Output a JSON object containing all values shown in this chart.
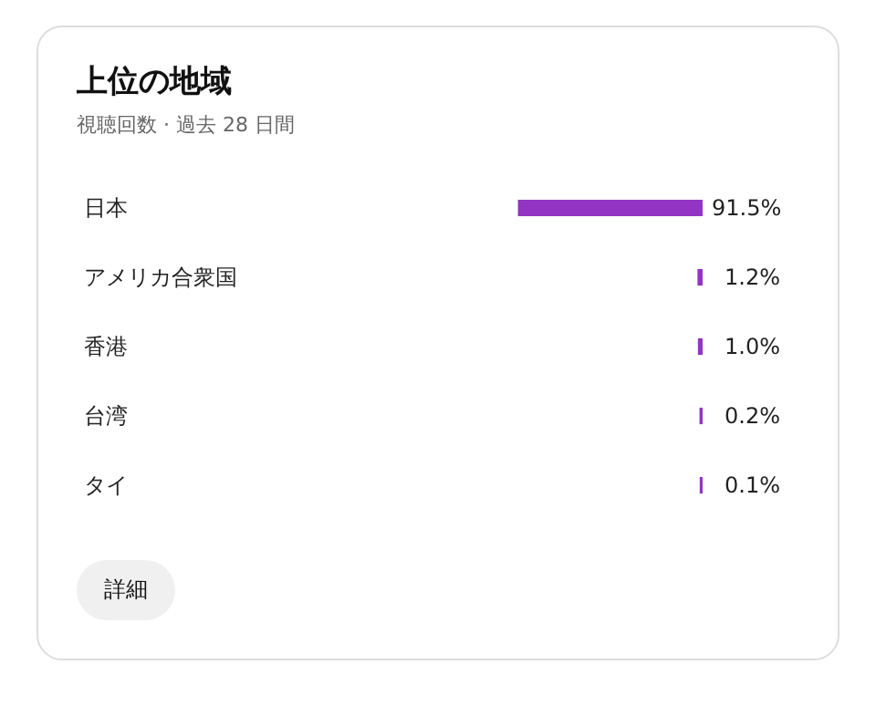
{
  "chart_data": {
    "type": "bar",
    "orientation": "horizontal",
    "title": "上位の地域",
    "subtitle": "視聴回数 · 過去 28 日間",
    "categories": [
      "日本",
      "アメリカ合衆国",
      "香港",
      "台湾",
      "タイ"
    ],
    "values": [
      91.5,
      1.2,
      1.0,
      0.2,
      0.1
    ],
    "value_labels": [
      "91.5%",
      "1.2%",
      "1.0%",
      "0.2%",
      "0.1%"
    ],
    "color": "#9334c4",
    "annotations": [
      "詳細"
    ]
  }
}
